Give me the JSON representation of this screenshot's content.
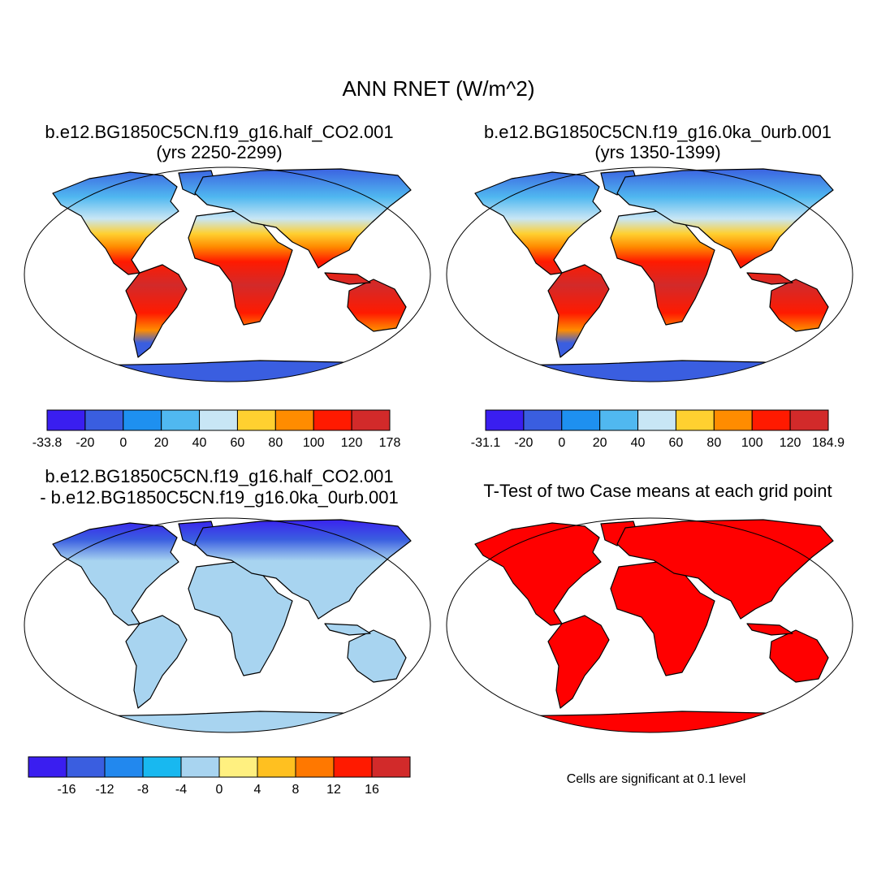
{
  "title": "ANN RNET (W/m^2)",
  "panels": [
    {
      "title": [
        "b.e12.BG1850C5CN.f19_g16.half_CO2.001",
        "(yrs 2250-2299)"
      ],
      "colorbar": {
        "colors": [
          "#3a1ef0",
          "#3a5ee0",
          "#1e90f0",
          "#50b8f0",
          "#c8e6f5",
          "#ffd030",
          "#ff8c00",
          "#ff1a00",
          "#d22a2a"
        ],
        "labels": [
          -33.8,
          -20,
          0,
          20,
          40,
          60,
          80,
          100,
          120,
          178
        ]
      }
    },
    {
      "title": [
        "b.e12.BG1850C5CN.f19_g16.0ka_0urb.001",
        "(yrs 1350-1399)"
      ],
      "colorbar": {
        "colors": [
          "#3a1ef0",
          "#3a5ee0",
          "#1e90f0",
          "#50b8f0",
          "#c8e6f5",
          "#ffd030",
          "#ff8c00",
          "#ff1a00",
          "#d22a2a"
        ],
        "labels": [
          -31.1,
          -20,
          0,
          20,
          40,
          60,
          80,
          100,
          120,
          184.9
        ]
      }
    },
    {
      "title": [
        "b.e12.BG1850C5CN.f19_g16.half_CO2.001",
        "- b.e12.BG1850C5CN.f19_g16.0ka_0urb.001"
      ],
      "colorbar": {
        "colors": [
          "#3a1ef0",
          "#3a5ee0",
          "#2288ee",
          "#18b8f0",
          "#a8d4f0",
          "#fff080",
          "#ffc020",
          "#ff7800",
          "#ff1a00",
          "#d22a2a"
        ],
        "labels": [
          -16,
          -12,
          -8,
          -4,
          0,
          4,
          8,
          12,
          16
        ]
      }
    },
    {
      "title": [
        "T-Test of two Case means at each grid point"
      ],
      "note": "Cells are significant at 0.1 level"
    }
  ]
}
